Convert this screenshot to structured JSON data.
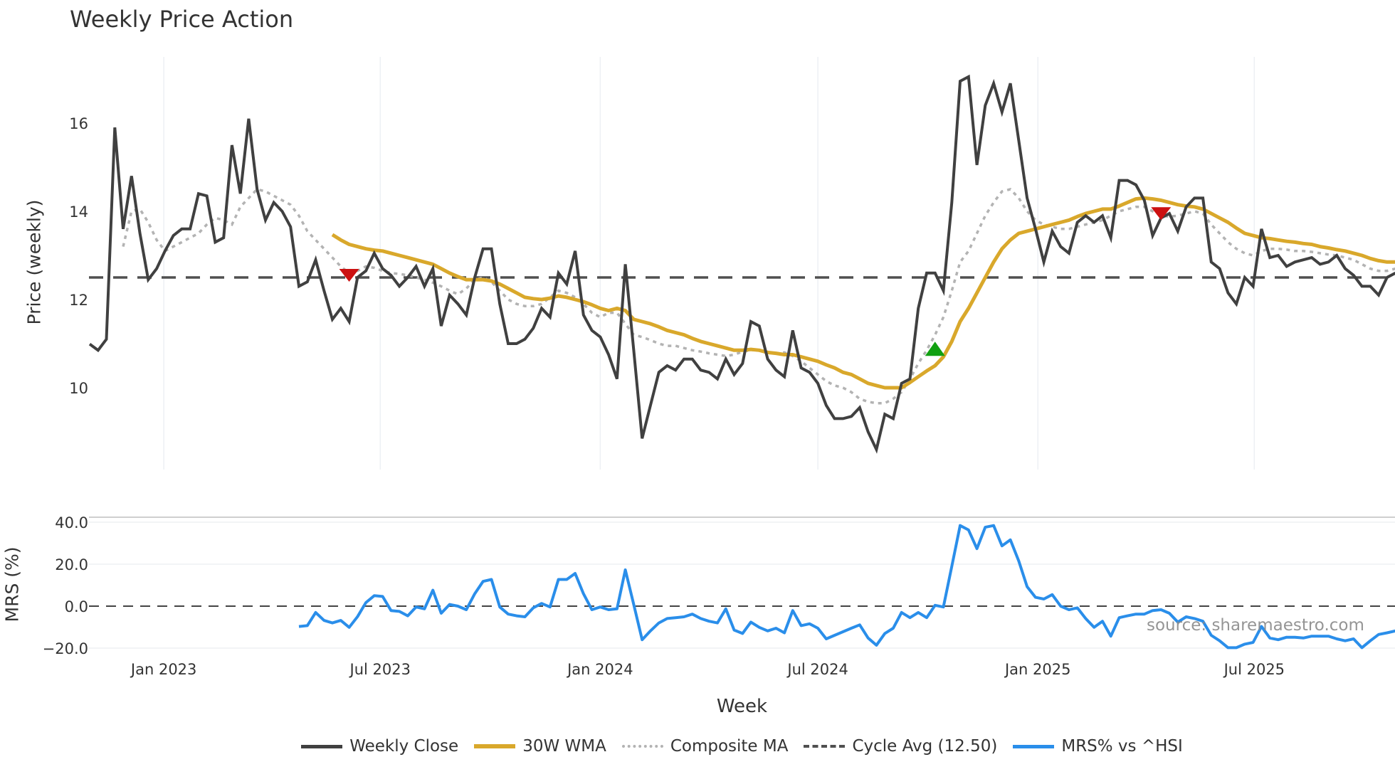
{
  "title": "Weekly Price Action",
  "watermark": "source: sharemaestro.com",
  "colors": {
    "close": "#404040",
    "wma": "#D9A82B",
    "composite": "#B3B3B3",
    "cycle": "#505050",
    "mrs": "#2A8EEA",
    "sell": "#CC1111",
    "buy": "#11A011",
    "grid": "#EDF0F4"
  },
  "chart_data": [
    {
      "type": "line",
      "title": "Weekly Price Action",
      "ylabel": "Price (weekly)",
      "xlabel": "Week",
      "ylim": [
        8.15,
        17.5
      ],
      "yticks": [
        {
          "value": 10,
          "label": "10"
        },
        {
          "value": 12,
          "label": "12"
        },
        {
          "value": 14,
          "label": "14"
        },
        {
          "value": 16,
          "label": "16"
        }
      ],
      "xticks": [
        {
          "date": "2023-01-01",
          "label": "Jan 2023"
        },
        {
          "date": "2023-07-01",
          "label": "Jul 2023"
        },
        {
          "date": "2024-01-01",
          "label": "Jan 2024"
        },
        {
          "date": "2024-07-01",
          "label": "Jul 2024"
        },
        {
          "date": "2025-01-01",
          "label": "Jan 2025"
        },
        {
          "date": "2025-07-01",
          "label": "Jul 2025"
        }
      ],
      "xrange": [
        "2022-10-31",
        "2025-10-27"
      ],
      "series": [
        {
          "name": "Weekly Close",
          "key": "close",
          "start": "2022-10-31",
          "values": [
            10.99,
            10.85,
            11.1,
            15.9,
            13.6,
            14.8,
            13.5,
            12.45,
            12.7,
            13.1,
            13.45,
            13.6,
            13.6,
            14.4,
            14.35,
            13.3,
            13.4,
            15.5,
            14.4,
            16.1,
            14.5,
            13.8,
            14.2,
            14.0,
            13.65,
            12.3,
            12.4,
            12.9,
            12.2,
            11.55,
            11.8,
            11.5,
            12.5,
            12.65,
            13.05,
            12.7,
            12.55,
            12.3,
            12.5,
            12.75,
            12.3,
            12.7,
            11.4,
            12.1,
            11.9,
            11.65,
            12.5,
            13.15,
            13.15,
            11.9,
            11.0,
            11.0,
            11.1,
            11.35,
            11.8,
            11.6,
            12.6,
            12.35,
            13.1,
            11.65,
            11.3,
            11.15,
            10.75,
            10.2,
            12.8,
            10.85,
            8.85,
            9.6,
            10.35,
            10.5,
            10.4,
            10.65,
            10.65,
            10.4,
            10.35,
            10.2,
            10.65,
            10.3,
            10.55,
            11.5,
            11.4,
            10.65,
            10.4,
            10.25,
            11.3,
            10.45,
            10.35,
            10.1,
            9.6,
            9.3,
            9.3,
            9.35,
            9.55,
            9.0,
            8.6,
            9.4,
            9.3,
            10.1,
            10.2,
            11.8,
            12.6,
            12.6,
            12.2,
            14.2,
            16.95,
            17.05,
            15.05,
            16.4,
            16.9,
            16.25,
            16.9,
            15.6,
            14.3,
            13.6,
            12.85,
            13.55,
            13.2,
            13.05,
            13.75,
            13.9,
            13.75,
            13.9,
            13.4,
            14.7,
            14.7,
            14.6,
            14.25,
            13.45,
            13.85,
            13.95,
            13.55,
            14.1,
            14.3,
            14.3,
            12.85,
            12.7,
            12.15,
            11.9,
            12.5,
            12.3,
            13.6,
            12.95,
            13.0,
            12.75,
            12.85,
            12.9,
            12.95,
            12.8,
            12.85,
            13.0,
            12.7,
            12.55,
            12.3,
            12.3,
            12.1,
            12.5,
            12.6
          ]
        },
        {
          "name": "30W WMA",
          "key": "wma",
          "start": "2023-05-22",
          "values": [
            13.47,
            13.35,
            13.25,
            13.2,
            13.15,
            13.12,
            13.1,
            13.05,
            13.0,
            12.95,
            12.9,
            12.85,
            12.8,
            12.7,
            12.6,
            12.52,
            12.45,
            12.45,
            12.45,
            12.42,
            12.35,
            12.25,
            12.15,
            12.05,
            12.02,
            12.0,
            12.03,
            12.08,
            12.05,
            12.0,
            11.95,
            11.88,
            11.8,
            11.75,
            11.8,
            11.75,
            11.55,
            11.5,
            11.45,
            11.38,
            11.3,
            11.25,
            11.2,
            11.12,
            11.05,
            11.0,
            10.95,
            10.9,
            10.85,
            10.85,
            10.87,
            10.85,
            10.8,
            10.78,
            10.75,
            10.75,
            10.7,
            10.65,
            10.6,
            10.52,
            10.45,
            10.35,
            10.3,
            10.2,
            10.1,
            10.05,
            10.0,
            10.0,
            10.0,
            10.12,
            10.25,
            10.38,
            10.5,
            10.7,
            11.05,
            11.5,
            11.8,
            12.15,
            12.5,
            12.85,
            13.15,
            13.35,
            13.5,
            13.55,
            13.6,
            13.65,
            13.7,
            13.75,
            13.8,
            13.88,
            13.95,
            14.0,
            14.05,
            14.05,
            14.12,
            14.2,
            14.28,
            14.3,
            14.28,
            14.25,
            14.2,
            14.15,
            14.12,
            14.1,
            14.05,
            13.95,
            13.85,
            13.75,
            13.62,
            13.5,
            13.45,
            13.4,
            13.38,
            13.35,
            13.32,
            13.3,
            13.27,
            13.25,
            13.2,
            13.17,
            13.13,
            13.1,
            13.05,
            13.0,
            12.93,
            12.88,
            12.85,
            12.85
          ]
        },
        {
          "name": "Composite MA",
          "key": "composite",
          "start": "2022-11-28",
          "values": [
            13.2,
            14.0,
            14.05,
            13.75,
            13.35,
            13.1,
            13.2,
            13.3,
            13.4,
            13.5,
            13.7,
            13.85,
            13.8,
            13.7,
            14.1,
            14.3,
            14.5,
            14.45,
            14.35,
            14.25,
            14.15,
            13.9,
            13.55,
            13.35,
            13.15,
            12.95,
            12.75,
            12.6,
            12.65,
            12.75,
            12.72,
            12.65,
            12.6,
            12.58,
            12.55,
            12.5,
            12.45,
            12.38,
            12.3,
            12.2,
            12.12,
            12.25,
            12.45,
            12.5,
            12.4,
            12.2,
            12.0,
            11.9,
            11.85,
            11.85,
            11.9,
            12.05,
            12.2,
            12.15,
            12.05,
            11.9,
            11.7,
            11.6,
            11.7,
            11.7,
            11.45,
            11.2,
            11.15,
            11.08,
            11.0,
            10.95,
            10.95,
            10.9,
            10.85,
            10.82,
            10.78,
            10.75,
            10.72,
            10.75,
            10.82,
            10.85,
            10.85,
            10.8,
            10.78,
            10.8,
            10.72,
            10.6,
            10.45,
            10.3,
            10.15,
            10.05,
            10.0,
            9.9,
            9.75,
            9.68,
            9.65,
            9.65,
            9.75,
            9.9,
            10.2,
            10.55,
            10.85,
            11.2,
            11.6,
            12.2,
            12.85,
            13.1,
            13.5,
            13.9,
            14.2,
            14.45,
            14.5,
            14.3,
            14.0,
            13.8,
            13.7,
            13.65,
            13.6,
            13.6,
            13.65,
            13.7,
            13.75,
            13.8,
            13.9,
            14.0,
            14.05,
            14.1,
            14.1,
            14.0,
            13.9,
            13.88,
            13.9,
            13.95,
            14.0,
            13.95,
            13.7,
            13.5,
            13.3,
            13.15,
            13.05,
            13.0,
            13.1,
            13.15,
            13.15,
            13.13,
            13.1,
            13.1,
            13.08,
            13.05,
            13.02,
            13.0,
            12.95,
            12.9,
            12.8,
            12.7,
            12.65,
            12.65,
            12.7
          ]
        },
        {
          "name": "Cycle Avg (12.50)",
          "key": "cycle",
          "value": 12.5
        }
      ],
      "markers": [
        {
          "type": "sell",
          "date": "2023-06-05",
          "value": 12.5
        },
        {
          "type": "buy",
          "date": "2024-10-07",
          "value": 10.85
        },
        {
          "type": "sell",
          "date": "2025-04-14",
          "value": 13.9
        }
      ]
    },
    {
      "type": "line",
      "ylabel": "MRS (%)",
      "ylim": [
        -25,
        42
      ],
      "yticks": [
        {
          "value": -20,
          "label": "−20.0"
        },
        {
          "value": 0,
          "label": "0.0"
        },
        {
          "value": 20,
          "label": "20.0"
        },
        {
          "value": 40,
          "label": "40.0"
        }
      ],
      "zero_line": 0,
      "series": [
        {
          "name": "MRS% vs ^HSI",
          "key": "mrs",
          "start": "2023-04-24",
          "values": [
            -9.7,
            -9.3,
            -3,
            -6.8,
            -8,
            -6.8,
            -10.1,
            -5,
            1.7,
            5,
            4.6,
            -2.1,
            -2.5,
            -4.6,
            -0.4,
            -1.3,
            7.6,
            -3.4,
            0.8,
            0,
            -1.7,
            5.9,
            11.8,
            12.7,
            -0.4,
            -3.8,
            -4.6,
            -5.1,
            -0.8,
            1.3,
            -0.4,
            12.7,
            12.7,
            15.6,
            5.9,
            -1.7,
            -0.4,
            -1.7,
            -1.3,
            17.3,
            0.8,
            -16,
            -11.8,
            -8,
            -5.9,
            -5.5,
            -5.1,
            -3.8,
            -5.9,
            -7.2,
            -8,
            -1.3,
            -11.4,
            -13,
            -7.6,
            -10.1,
            -11.8,
            -10.5,
            -12.7,
            -2.1,
            -9.3,
            -8.4,
            -10.5,
            -15.6,
            -13.9,
            -12.2,
            -10.5,
            -8.9,
            -15.2,
            -18.6,
            -13,
            -10.5,
            -3,
            -5.5,
            -3,
            -5.5,
            0.4,
            -0.4,
            19,
            38.4,
            36.3,
            27.4,
            37.6,
            38.4,
            28.7,
            31.6,
            21.5,
            9.3,
            4.2,
            3.4,
            5.5,
            0,
            -1.7,
            -0.8,
            -5.9,
            -10.1,
            -7.2,
            -14.3,
            -5.5,
            -4.6,
            -3.8,
            -3.8,
            -2.1,
            -1.7,
            -3.4,
            -7.6,
            -5.1,
            -5.9,
            -7.2,
            -13.9,
            -16.5,
            -19.8,
            -19.8,
            -18.1,
            -17.3,
            -9.7,
            -15.2,
            -16,
            -14.8,
            -14.8,
            -15.2,
            -14.3,
            -14.3,
            -14.3,
            -15.6,
            -16.5,
            -15.6,
            -19.8,
            -16.5,
            -13.5,
            -12.7,
            -11.8
          ]
        }
      ]
    }
  ],
  "legend": [
    {
      "key": "close",
      "label": "Weekly Close"
    },
    {
      "key": "wma",
      "label": "30W WMA"
    },
    {
      "key": "composite",
      "label": "Composite MA"
    },
    {
      "key": "cycle",
      "label": "Cycle Avg (12.50)"
    },
    {
      "key": "mrs",
      "label": "MRS% vs ^HSI"
    }
  ]
}
